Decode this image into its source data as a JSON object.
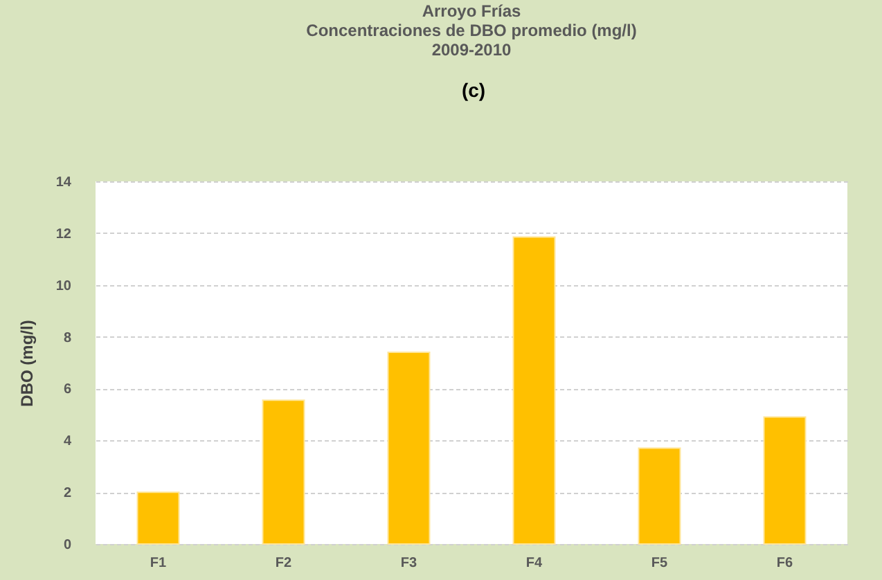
{
  "chart_data": {
    "type": "bar",
    "title": "Arroyo Frías\nConcentraciones de DBO promedio (mg/l)\n2009-2010",
    "annotations": [
      "(c)"
    ],
    "ylabel": "DBO (mg/l)",
    "categories": [
      "F1",
      "F2",
      "F3",
      "F4",
      "F5",
      "F6"
    ],
    "values": [
      2.0,
      5.55,
      7.4,
      11.85,
      3.7,
      4.9
    ],
    "color": "#ffc000",
    "ylim": [
      0,
      14
    ],
    "yticks": [
      0,
      2,
      4,
      6,
      8,
      10,
      12,
      14
    ],
    "grid": "y"
  }
}
